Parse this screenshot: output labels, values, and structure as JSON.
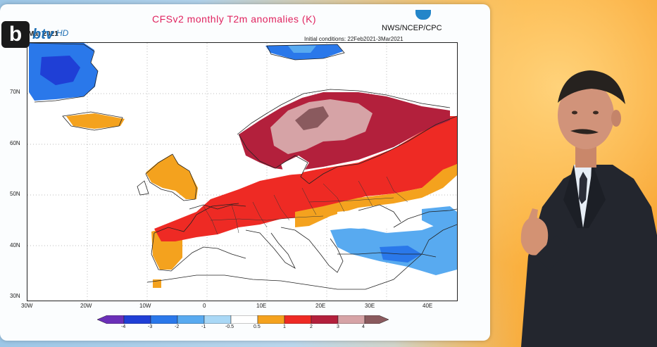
{
  "broadcast": {
    "channel_logo": "btv",
    "channel_logo_suffix": "HD"
  },
  "map": {
    "title": "CFSv2 monthly T2m anomalies (K)",
    "agency": "NWS/NCEP/CPC",
    "valid_date": "Mar 2021",
    "initial_conditions": "Initial conditions: 22Feb2021-3Mar2021",
    "lat_labels": [
      "70N",
      "60N",
      "50N",
      "40N",
      "30N"
    ],
    "lon_labels": [
      "30W",
      "20W",
      "10W",
      "0",
      "10E",
      "20E",
      "30E",
      "40E"
    ],
    "colorbar_labels": [
      "-4",
      "-3",
      "-2",
      "-1",
      "-0.5",
      "0.5",
      "1",
      "2",
      "3",
      "4"
    ],
    "colorbar_colors": [
      "#6b2fb8",
      "#1f3fd6",
      "#2a78ea",
      "#58aaf0",
      "#a9d8f6",
      "#ffffff",
      "#f4a21e",
      "#ee2a24",
      "#b3203c",
      "#d6a3a6",
      "#8a5a5e"
    ]
  }
}
